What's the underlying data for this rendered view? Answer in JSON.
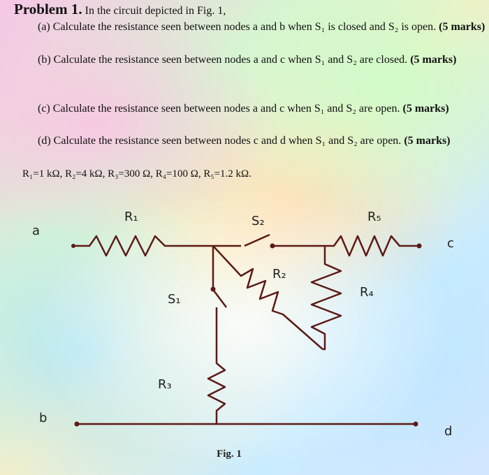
{
  "header": {
    "problem": "Problem 1.",
    "intro": "In the circuit depicted in Fig. 1,"
  },
  "parts": [
    {
      "label": "(a)",
      "text": "Calculate the resistance seen between nodes a and b when S₁ is closed and S₂ is open.",
      "marks": "(5 marks)"
    },
    {
      "label": "(b)",
      "text": "Calculate the resistance seen between nodes a and c when S₁ and S₂ are closed.",
      "marks": "(5 marks)"
    },
    {
      "label": "(c)",
      "text": "Calculate the resistance seen between nodes a and c when S₁ and S₂ are open.",
      "marks": "(5 marks)"
    },
    {
      "label": "(d)",
      "text": "Calculate the resistance seen between nodes c and d when S₁ and S₂ are open.",
      "marks": "(5 marks)"
    }
  ],
  "given": "R₁=1 kΩ, R₂=4 kΩ, R₃=300 Ω, R₄=100 Ω, R₅=1.2 kΩ.",
  "figure": {
    "labels": {
      "r1": "R₁",
      "s2": "S₂",
      "r5": "R₅",
      "a": "a",
      "c": "c",
      "r2": "R₂",
      "r4": "R₄",
      "s1": "S₁",
      "r3": "R₃",
      "b": "b",
      "d": "d"
    },
    "caption": "Fig. 1"
  }
}
